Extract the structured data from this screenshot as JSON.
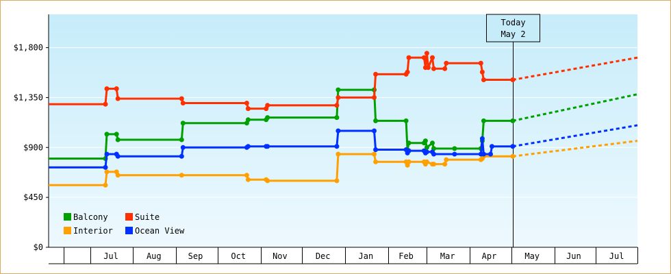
{
  "chart_data": {
    "type": "line",
    "title": "",
    "xlabel": "",
    "ylabel": "",
    "ylim": [
      0,
      2100
    ],
    "yticks": [
      0,
      450,
      900,
      1350,
      1800
    ],
    "ytick_labels": [
      "$0",
      "$450",
      "$900",
      "$1,350",
      "$1,800"
    ],
    "xlim": [
      "2016-06-01",
      "2017-07-31"
    ],
    "month_labels": [
      {
        "label": "Jul",
        "date": "2016-07-16"
      },
      {
        "label": "Aug",
        "date": "2016-08-16"
      },
      {
        "label": "Sep",
        "date": "2016-09-15"
      },
      {
        "label": "Oct",
        "date": "2016-10-16"
      },
      {
        "label": "Nov",
        "date": "2016-11-15"
      },
      {
        "label": "Dec",
        "date": "2016-12-16"
      },
      {
        "label": "Jan",
        "date": "2017-01-16"
      },
      {
        "label": "Feb",
        "date": "2017-02-14"
      },
      {
        "label": "Mar",
        "date": "2017-03-16"
      },
      {
        "label": "Apr",
        "date": "2017-04-15"
      },
      {
        "label": "May",
        "date": "2017-05-16"
      },
      {
        "label": "Jun",
        "date": "2017-06-15"
      },
      {
        "label": "Jul",
        "date": "2017-07-16"
      }
    ],
    "month_boundaries": [
      "2016-06-12",
      "2016-07-01",
      "2016-08-01",
      "2016-09-01",
      "2016-10-01",
      "2016-11-01",
      "2016-12-01",
      "2017-01-01",
      "2017-02-01",
      "2017-03-01",
      "2017-04-01",
      "2017-05-01",
      "2017-06-01",
      "2017-07-01",
      "2017-07-31"
    ],
    "today": {
      "date": "2017-05-02",
      "label_line1": "Today",
      "label_line2": "May 2"
    },
    "legend_position": "bottom-left",
    "series": [
      {
        "name": "Balcony",
        "color": "#00a000",
        "points": [
          [
            "2016-06-01",
            800
          ],
          [
            "2016-07-12",
            800
          ],
          [
            "2016-07-13",
            1020
          ],
          [
            "2016-07-20",
            1020
          ],
          [
            "2016-07-21",
            970
          ],
          [
            "2016-09-05",
            970
          ],
          [
            "2016-09-06",
            1120
          ],
          [
            "2016-10-22",
            1120
          ],
          [
            "2016-10-23",
            1150
          ],
          [
            "2016-11-05",
            1150
          ],
          [
            "2016-11-06",
            1170
          ],
          [
            "2016-12-26",
            1170
          ],
          [
            "2016-12-27",
            1420
          ],
          [
            "2017-01-22",
            1420
          ],
          [
            "2017-01-23",
            1140
          ],
          [
            "2017-02-14",
            1140
          ],
          [
            "2017-02-15",
            880
          ],
          [
            "2017-02-16",
            940
          ],
          [
            "2017-02-27",
            940
          ],
          [
            "2017-02-28",
            960
          ],
          [
            "2017-03-01",
            900
          ],
          [
            "2017-03-05",
            940
          ],
          [
            "2017-03-06",
            890
          ],
          [
            "2017-03-21",
            890
          ],
          [
            "2017-04-09",
            890
          ],
          [
            "2017-04-10",
            960
          ],
          [
            "2017-04-11",
            1140
          ],
          [
            "2017-05-02",
            1140
          ]
        ],
        "projection": [
          [
            "2017-05-02",
            1140
          ],
          [
            "2017-07-31",
            1380
          ]
        ]
      },
      {
        "name": "Suite",
        "color": "#ff3000",
        "points": [
          [
            "2016-06-01",
            1290
          ],
          [
            "2016-07-12",
            1290
          ],
          [
            "2016-07-13",
            1430
          ],
          [
            "2016-07-20",
            1430
          ],
          [
            "2016-07-21",
            1340
          ],
          [
            "2016-09-05",
            1340
          ],
          [
            "2016-09-06",
            1300
          ],
          [
            "2016-10-22",
            1300
          ],
          [
            "2016-10-23",
            1250
          ],
          [
            "2016-11-05",
            1250
          ],
          [
            "2016-11-06",
            1280
          ],
          [
            "2016-12-26",
            1280
          ],
          [
            "2016-12-27",
            1350
          ],
          [
            "2017-01-22",
            1350
          ],
          [
            "2017-01-23",
            1560
          ],
          [
            "2017-02-14",
            1560
          ],
          [
            "2017-02-15",
            1580
          ],
          [
            "2017-02-16",
            1710
          ],
          [
            "2017-02-27",
            1710
          ],
          [
            "2017-02-28",
            1620
          ],
          [
            "2017-03-01",
            1750
          ],
          [
            "2017-03-02",
            1620
          ],
          [
            "2017-03-05",
            1710
          ],
          [
            "2017-03-06",
            1610
          ],
          [
            "2017-03-14",
            1610
          ],
          [
            "2017-03-15",
            1660
          ],
          [
            "2017-04-09",
            1660
          ],
          [
            "2017-04-10",
            1580
          ],
          [
            "2017-04-11",
            1510
          ],
          [
            "2017-05-02",
            1510
          ]
        ],
        "projection": [
          [
            "2017-05-02",
            1510
          ],
          [
            "2017-07-31",
            1710
          ]
        ]
      },
      {
        "name": "Interior",
        "color": "#ffa000",
        "points": [
          [
            "2016-06-01",
            560
          ],
          [
            "2016-07-12",
            560
          ],
          [
            "2016-07-13",
            680
          ],
          [
            "2016-07-20",
            680
          ],
          [
            "2016-07-21",
            650
          ],
          [
            "2016-09-05",
            650
          ],
          [
            "2016-10-22",
            650
          ],
          [
            "2016-10-23",
            610
          ],
          [
            "2016-11-05",
            610
          ],
          [
            "2016-11-06",
            600
          ],
          [
            "2016-12-26",
            600
          ],
          [
            "2016-12-27",
            840
          ],
          [
            "2017-01-22",
            840
          ],
          [
            "2017-01-23",
            770
          ],
          [
            "2017-02-14",
            770
          ],
          [
            "2017-02-15",
            740
          ],
          [
            "2017-02-16",
            770
          ],
          [
            "2017-02-27",
            770
          ],
          [
            "2017-02-28",
            750
          ],
          [
            "2017-03-01",
            770
          ],
          [
            "2017-03-05",
            750
          ],
          [
            "2017-03-06",
            750
          ],
          [
            "2017-03-14",
            750
          ],
          [
            "2017-03-15",
            790
          ],
          [
            "2017-04-09",
            790
          ],
          [
            "2017-04-10",
            800
          ],
          [
            "2017-04-11",
            820
          ],
          [
            "2017-05-02",
            820
          ]
        ],
        "projection": [
          [
            "2017-05-02",
            820
          ],
          [
            "2017-07-31",
            960
          ]
        ]
      },
      {
        "name": "Ocean View",
        "color": "#0030ff",
        "points": [
          [
            "2016-06-01",
            720
          ],
          [
            "2016-07-12",
            720
          ],
          [
            "2016-07-13",
            840
          ],
          [
            "2016-07-20",
            840
          ],
          [
            "2016-07-21",
            820
          ],
          [
            "2016-09-05",
            820
          ],
          [
            "2016-09-06",
            900
          ],
          [
            "2016-10-22",
            900
          ],
          [
            "2016-10-23",
            910
          ],
          [
            "2016-11-05",
            910
          ],
          [
            "2016-11-06",
            910
          ],
          [
            "2016-12-26",
            910
          ],
          [
            "2016-12-27",
            1050
          ],
          [
            "2017-01-22",
            1050
          ],
          [
            "2017-01-23",
            880
          ],
          [
            "2017-02-14",
            880
          ],
          [
            "2017-02-15",
            850
          ],
          [
            "2017-02-16",
            870
          ],
          [
            "2017-02-27",
            870
          ],
          [
            "2017-02-28",
            850
          ],
          [
            "2017-03-01",
            860
          ],
          [
            "2017-03-05",
            860
          ],
          [
            "2017-03-06",
            840
          ],
          [
            "2017-03-21",
            840
          ],
          [
            "2017-04-09",
            840
          ],
          [
            "2017-04-10",
            980
          ],
          [
            "2017-04-11",
            840
          ],
          [
            "2017-04-16",
            840
          ],
          [
            "2017-04-17",
            910
          ],
          [
            "2017-05-02",
            910
          ]
        ],
        "projection": [
          [
            "2017-05-02",
            910
          ],
          [
            "2017-07-31",
            1100
          ]
        ]
      }
    ]
  }
}
